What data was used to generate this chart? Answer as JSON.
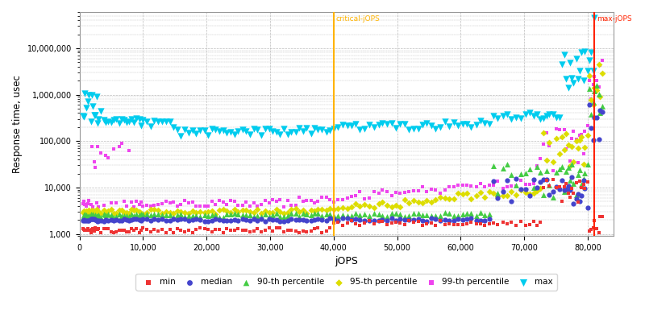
{
  "xlabel": "jOPS",
  "ylabel": "Response time, usec",
  "critical_jops": 40000,
  "max_jops": 81000,
  "xlim": [
    0,
    84000
  ],
  "ylim_log": [
    900,
    60000000
  ],
  "critical_label": "critical-jOPS",
  "max_label": "max-jOPS",
  "critical_line_color": "#FFB300",
  "max_line_color": "#FF2200",
  "background_color": "#FFFFFF",
  "grid_color": "#BBBBBB",
  "series": {
    "min": {
      "color": "#EE3333",
      "marker": "s",
      "ms": 3.5,
      "label": "min"
    },
    "median": {
      "color": "#4444CC",
      "marker": "o",
      "ms": 4.5,
      "label": "median"
    },
    "p90": {
      "color": "#44CC44",
      "marker": "^",
      "ms": 5,
      "label": "90-th percentile"
    },
    "p95": {
      "color": "#DDDD00",
      "marker": "D",
      "ms": 4,
      "label": "95-th percentile"
    },
    "p99": {
      "color": "#EE44EE",
      "marker": "s",
      "ms": 3.5,
      "label": "99-th percentile"
    },
    "max": {
      "color": "#00CCEE",
      "marker": "v",
      "ms": 6,
      "label": "max"
    }
  }
}
